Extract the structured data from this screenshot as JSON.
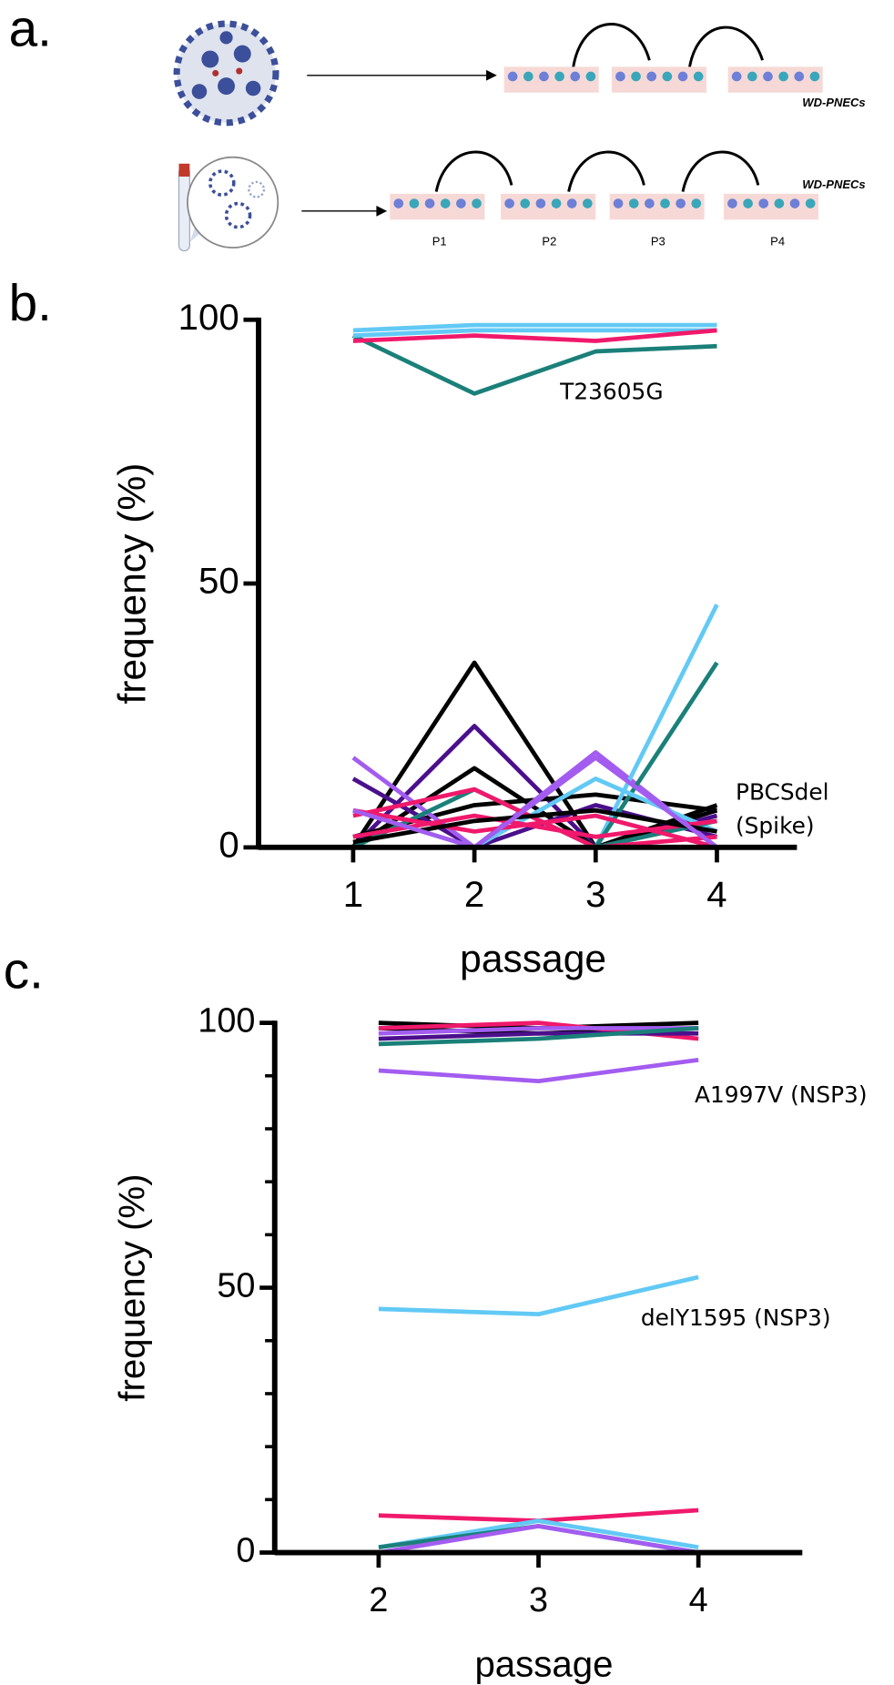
{
  "panel_a": {
    "label": "a.",
    "rows": [
      {
        "caption": "WD-PNECs"
      },
      {
        "caption": "WD-PNECs",
        "passages": [
          "P1",
          "P2",
          "P3",
          "P4"
        ]
      }
    ]
  },
  "chart_data": [
    {
      "type": "line",
      "panel_label": "b.",
      "x_label": "passage",
      "y_label": "frequency (%)",
      "x": [
        1,
        2,
        3,
        4
      ],
      "xlim": [
        0.22,
        4.66
      ],
      "xticks": [
        1,
        2,
        3,
        4
      ],
      "ylim": [
        0,
        100
      ],
      "yticks": [
        0,
        50,
        100
      ],
      "annotations": [
        "T23605G",
        "PBCSdel",
        "(Spike)"
      ],
      "series": [
        {
          "color": "#1a8079",
          "values": [
            97,
            86,
            94,
            95
          ]
        },
        {
          "color": "#62c9f5",
          "values": [
            97,
            98,
            98,
            98
          ]
        },
        {
          "color": "#62c9f5",
          "values": [
            98,
            99,
            99,
            99
          ]
        },
        {
          "color": "#f0196b",
          "values": [
            96,
            97,
            96,
            98
          ]
        },
        {
          "color": "#000000",
          "values": [
            0,
            35,
            0,
            8
          ]
        },
        {
          "color": "#4b0f8c",
          "values": [
            0,
            23,
            0,
            6
          ]
        },
        {
          "color": "#000000",
          "values": [
            0,
            15,
            0,
            7
          ]
        },
        {
          "color": "#000000",
          "values": [
            2,
            8,
            10,
            7
          ]
        },
        {
          "color": "#4b0f8c",
          "values": [
            13,
            0,
            8,
            2
          ]
        },
        {
          "color": "#a35cf0",
          "values": [
            17,
            0,
            18,
            0
          ]
        },
        {
          "color": "#62c9f5",
          "values": [
            0,
            0,
            0,
            46
          ]
        },
        {
          "color": "#1a8079",
          "values": [
            0,
            0,
            0,
            35
          ]
        },
        {
          "color": "#62c9f5",
          "values": [
            7,
            0,
            13,
            3
          ]
        },
        {
          "color": "#1a8079",
          "values": [
            0,
            11,
            0,
            5
          ]
        },
        {
          "color": "#f0196b",
          "values": [
            6,
            11,
            0,
            2
          ]
        },
        {
          "color": "#f0196b",
          "values": [
            7,
            3,
            6,
            0
          ]
        },
        {
          "color": "#f0196b",
          "values": [
            2,
            6,
            2,
            5
          ]
        },
        {
          "color": "#000000",
          "values": [
            1,
            5,
            7,
            3
          ]
        },
        {
          "color": "#a35cf0",
          "values": [
            7,
            0,
            17,
            0
          ]
        }
      ]
    },
    {
      "type": "line",
      "panel_label": "c.",
      "x_label": "passage",
      "y_label": "frequency (%)",
      "x": [
        2,
        3,
        4
      ],
      "xlim": [
        1.35,
        4.65
      ],
      "xticks": [
        2,
        3,
        4
      ],
      "ylim": [
        0,
        100
      ],
      "yticks": [
        0,
        50,
        100
      ],
      "minor_yticks": [
        10,
        20,
        30,
        40,
        60,
        70,
        80,
        90
      ],
      "annotations": [
        "A1997V (NSP3)",
        "delY1595 (NSP3)"
      ],
      "series": [
        {
          "color": "#000000",
          "values": [
            100,
            99,
            100
          ]
        },
        {
          "color": "#000000",
          "values": [
            99,
            98,
            99
          ]
        },
        {
          "color": "#f0196b",
          "values": [
            99,
            100,
            97
          ]
        },
        {
          "color": "#4b0f8c",
          "values": [
            97,
            98,
            98
          ]
        },
        {
          "color": "#a35cf0",
          "values": [
            98,
            99,
            99
          ]
        },
        {
          "color": "#1a8079",
          "values": [
            96,
            97,
            99
          ]
        },
        {
          "color": "#a35cf0",
          "values": [
            91,
            89,
            93
          ]
        },
        {
          "color": "#62c9f5",
          "values": [
            46,
            45,
            52
          ]
        },
        {
          "color": "#f0196b",
          "values": [
            7,
            6,
            8
          ]
        },
        {
          "color": "#62c9f5",
          "values": [
            1,
            6,
            1
          ]
        },
        {
          "color": "#1a8079",
          "values": [
            1,
            5,
            0
          ]
        },
        {
          "color": "#a35cf0",
          "values": [
            0,
            5,
            0
          ]
        }
      ]
    }
  ]
}
